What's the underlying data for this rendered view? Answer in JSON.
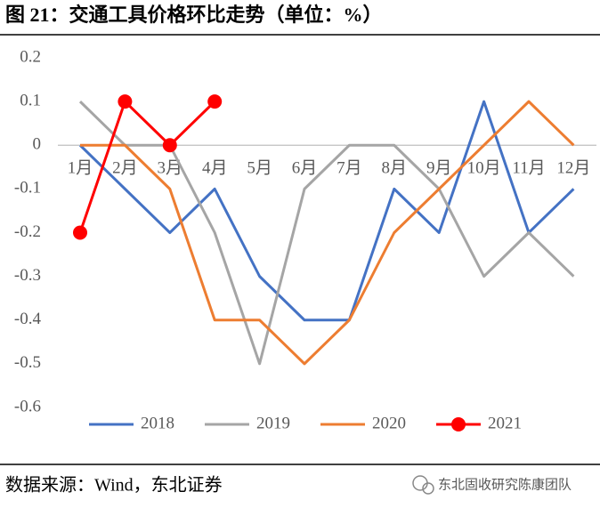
{
  "chart_data": {
    "type": "line",
    "title": "图 21：交通工具价格环比走势（单位：%）",
    "categories": [
      "1月",
      "2月",
      "3月",
      "4月",
      "5月",
      "6月",
      "7月",
      "8月",
      "9月",
      "10月",
      "11月",
      "12月"
    ],
    "series": [
      {
        "name": "2018",
        "color": "#4472c4",
        "values": [
          0,
          -0.1,
          -0.2,
          -0.1,
          -0.3,
          -0.4,
          -0.4,
          -0.1,
          -0.2,
          0.1,
          -0.2,
          -0.1
        ]
      },
      {
        "name": "2019",
        "color": "#a5a5a5",
        "values": [
          0.1,
          0,
          0,
          -0.2,
          -0.5,
          -0.1,
          0,
          0,
          -0.1,
          -0.3,
          -0.2,
          -0.3
        ]
      },
      {
        "name": "2020",
        "color": "#ed7d31",
        "values": [
          0,
          0,
          -0.1,
          -0.4,
          -0.4,
          -0.5,
          -0.4,
          -0.2,
          -0.1,
          0,
          0.1,
          0
        ]
      },
      {
        "name": "2021",
        "color": "#ff0000",
        "values": [
          -0.2,
          0.1,
          0,
          0.1,
          null,
          null,
          null,
          null,
          null,
          null,
          null,
          null
        ],
        "markers": true
      }
    ],
    "ylim": [
      -0.6,
      0.2
    ],
    "yticks": [
      0.2,
      0.1,
      0,
      -0.1,
      -0.2,
      -0.3,
      -0.4,
      -0.5,
      -0.6
    ],
    "grid": false,
    "legend": "bottom",
    "source": "数据来源：Wind，东北证券",
    "watermark": "东北固收研究陈康团队"
  }
}
